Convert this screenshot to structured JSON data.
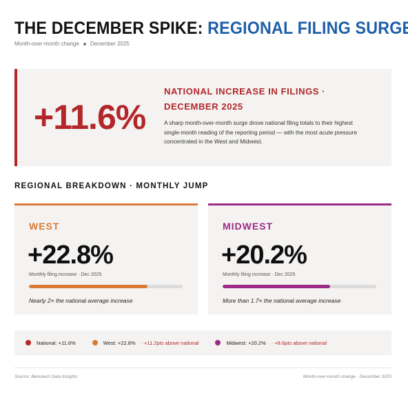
{
  "header": {
    "title_part1": "THE DECEMBER SPIKE:",
    "title_part2": "REGIONAL FILING SURGE",
    "subtitle_metric": "Month-over-month change",
    "subtitle_date": "December 2025"
  },
  "national": {
    "value": "+11.6%",
    "kicker": "NATIONAL INCREASE IN FILINGS · DECEMBER 2025",
    "description": "A sharp month-over-month surge drove national filing totals to their highest single-month reading of the reporting period — with the most acute pressure concentrated in the West and Midwest."
  },
  "section": {
    "label": "REGIONAL BREAKDOWN · MONTHLY JUMP"
  },
  "regions": [
    {
      "name": "WEST",
      "value": "+22.8%",
      "caption": "Monthly filing increase · Dec 2025",
      "bar_fraction": 0.77,
      "note": "Nearly 2× the national average increase",
      "color": "#d97a34"
    },
    {
      "name": "MIDWEST",
      "value": "+20.2%",
      "caption": "Monthly filing increase · Dec 2025",
      "bar_fraction": 0.7,
      "note": "More than 1.7× the national average increase",
      "color": "#9c2a86"
    }
  ],
  "legend": {
    "national": {
      "label": "National: +11.6%",
      "color": "#b3262a"
    },
    "west": {
      "label": "West: +22.8%",
      "delta": "· +11.2pts above national",
      "color": "#d97a34"
    },
    "midwest": {
      "label": "Midwest: +20.2%",
      "delta": "· +8.6pts above national",
      "color": "#9c2a86"
    }
  },
  "footer": {
    "source": "Source: Benutech Data Insights",
    "note": "Month-over-month change · December 2025"
  },
  "colors": {
    "accent_red": "#b3262a",
    "title_blue": "#1e5fa8",
    "panel_bg": "#f4f3f1"
  }
}
